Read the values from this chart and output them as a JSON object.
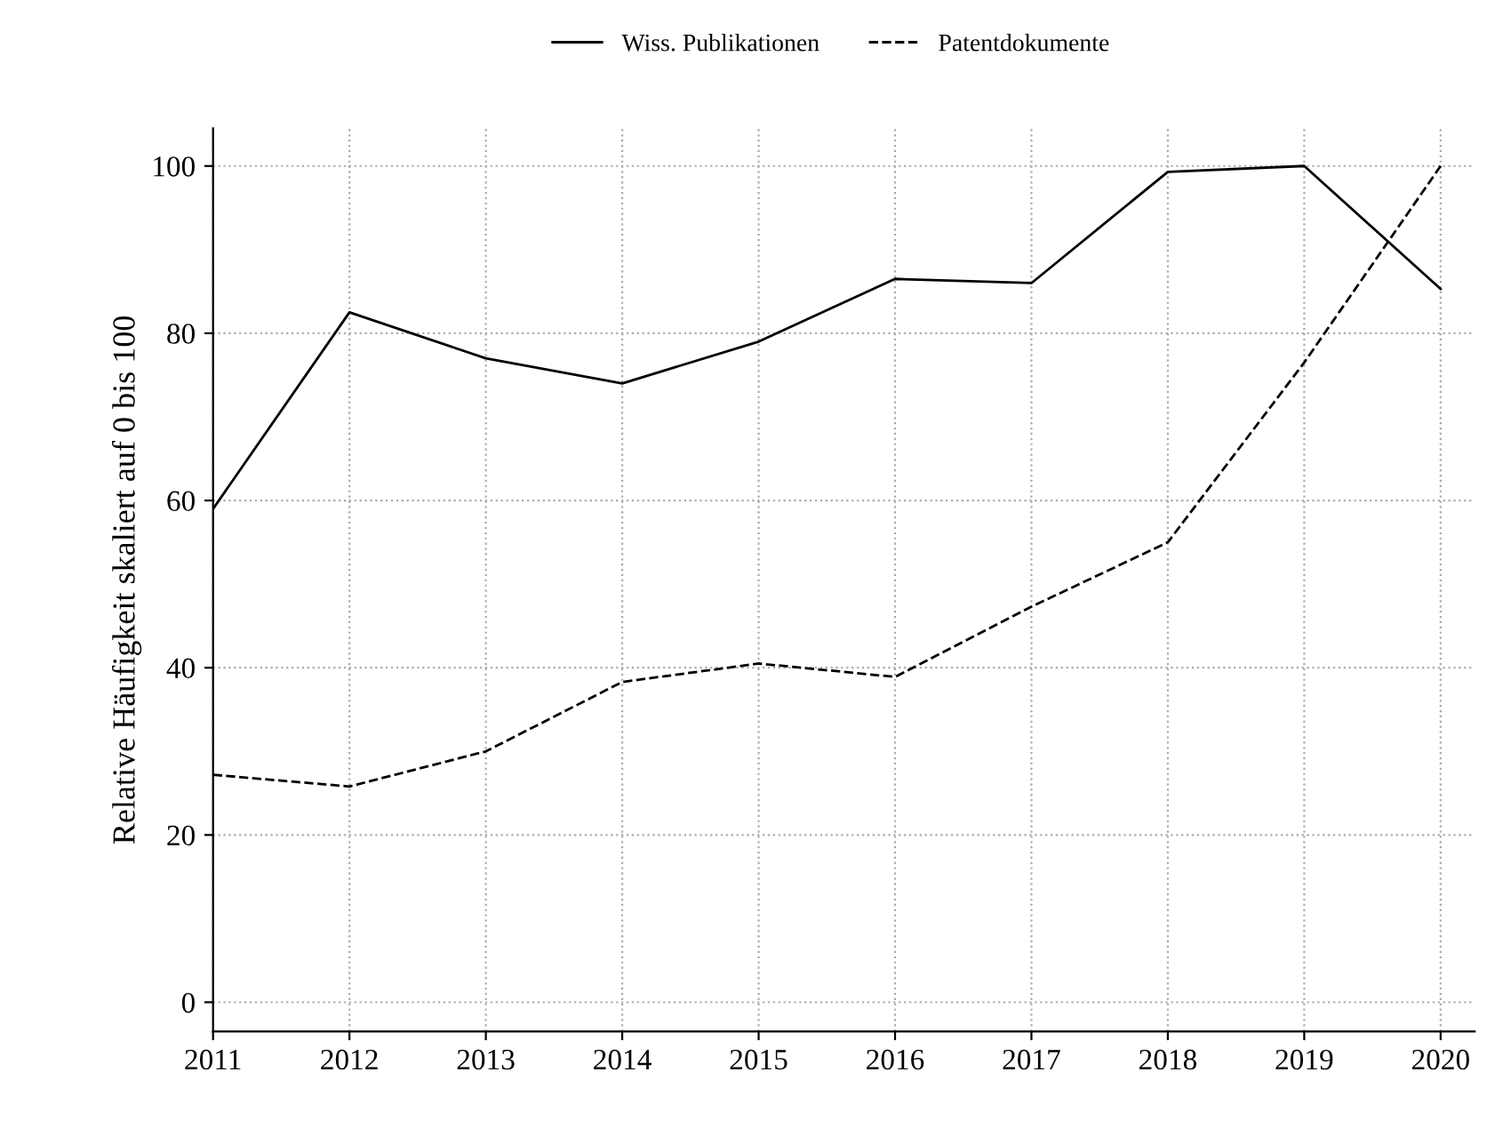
{
  "chart_data": {
    "type": "line",
    "ylabel": "Relative Häufigkeit skaliert auf 0 bis 100",
    "x": [
      2011,
      2012,
      2013,
      2014,
      2015,
      2016,
      2017,
      2018,
      2019,
      2020
    ],
    "series": [
      {
        "name": "Wiss. Publikationen",
        "color": "#000000",
        "line_style": "solid",
        "values": [
          59,
          82.5,
          77,
          74,
          79,
          86.5,
          86,
          99.3,
          100,
          85.3
        ]
      },
      {
        "name": "Patentdokumente",
        "color": "#000000",
        "line_style": "dashed",
        "values": [
          27.2,
          25.8,
          30,
          38.3,
          40.5,
          38.9,
          47.3,
          55,
          76.5,
          100
        ]
      }
    ],
    "xlim": [
      2011,
      2020.25
    ],
    "ylim": [
      -3.5,
      104.5
    ],
    "xticks": [
      2011,
      2012,
      2013,
      2014,
      2015,
      2016,
      2017,
      2018,
      2019,
      2020
    ],
    "yticks": [
      0,
      20,
      40,
      60,
      80,
      100
    ],
    "grid": true,
    "legend": "top",
    "marker": "none"
  }
}
